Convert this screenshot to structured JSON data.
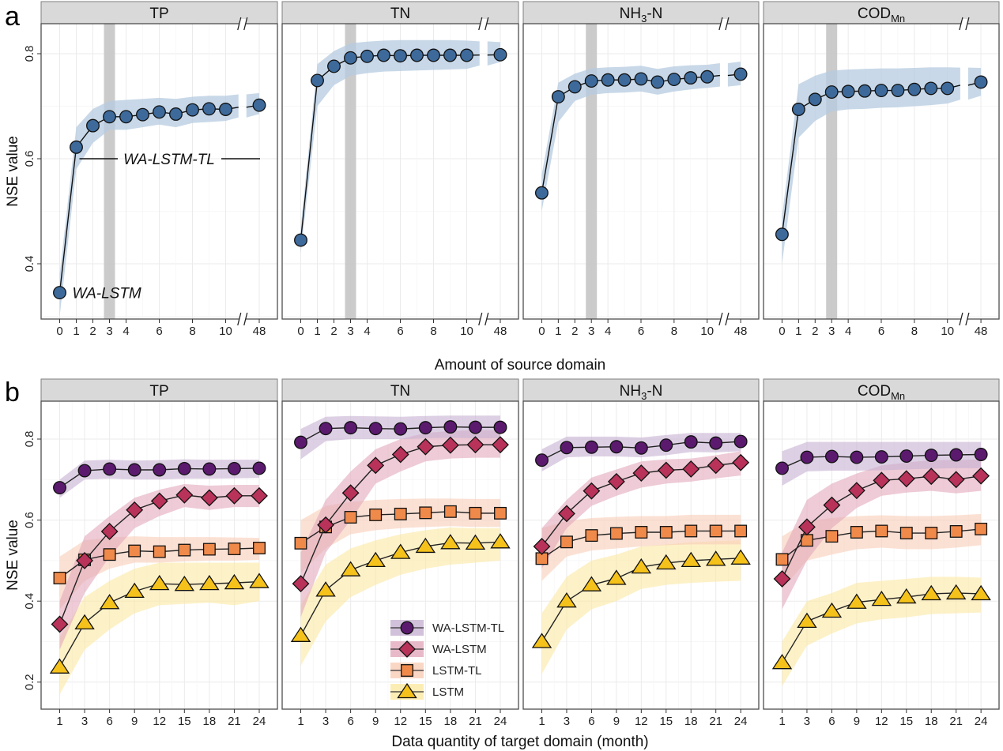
{
  "figure": {
    "panel_letters": [
      "a",
      "b"
    ]
  },
  "chart_data": [
    {
      "id": "a",
      "type": "line",
      "title": "",
      "xlabel": "Amount of source domain",
      "ylabel": "NSE value",
      "ylim": [
        0.3,
        0.86
      ],
      "y_ticks": [
        0.4,
        0.6,
        0.8
      ],
      "y_tick_labels": [
        "0.4",
        "0.6",
        "0.8"
      ],
      "x": [
        0,
        1,
        2,
        3,
        4,
        5,
        6,
        7,
        8,
        9,
        10,
        48
      ],
      "x_tick_values": [
        0,
        1,
        2,
        3,
        4,
        6,
        8,
        10,
        48
      ],
      "x_tick_labels": [
        "0",
        "1",
        "2",
        "3",
        "4",
        "6",
        "8",
        "10",
        "48"
      ],
      "axis_break": "between 10 and 48",
      "highlight_x": 3,
      "grid": true,
      "band": "uncertainty range shaded around line",
      "colors": {
        "line": "#111111",
        "marker": "#3d6a9a",
        "band": "#b6cbe0",
        "highlight": "#c8c8c8",
        "strip": "#d9d9d9"
      },
      "annotations": [
        {
          "facet": "TP",
          "text": "WA-LSTM-TL",
          "near_x": 6,
          "y": 0.6,
          "style": "italic with line"
        },
        {
          "facet": "TP",
          "text": "WA-LSTM",
          "near_x": 0,
          "y": 0.345,
          "style": "italic"
        }
      ],
      "facets": [
        {
          "label": "TP",
          "label_main": "TP",
          "label_sub": "",
          "values": [
            0.345,
            0.622,
            0.663,
            0.68,
            0.68,
            0.684,
            0.689,
            0.685,
            0.693,
            0.695,
            0.694,
            0.702
          ],
          "lower": [
            0.3,
            0.58,
            0.63,
            0.655,
            0.655,
            0.66,
            0.665,
            0.66,
            0.668,
            0.67,
            0.672,
            0.685
          ],
          "upper": [
            0.38,
            0.66,
            0.695,
            0.71,
            0.712,
            0.714,
            0.716,
            0.714,
            0.718,
            0.72,
            0.72,
            0.725
          ]
        },
        {
          "label": "TN",
          "label_main": "TN",
          "label_sub": "",
          "values": [
            0.445,
            0.749,
            0.776,
            0.792,
            0.795,
            0.797,
            0.796,
            0.797,
            0.797,
            0.797,
            0.797,
            0.798
          ],
          "lower": [
            0.42,
            0.7,
            0.74,
            0.758,
            0.763,
            0.766,
            0.767,
            0.768,
            0.769,
            0.77,
            0.771,
            0.784
          ],
          "upper": [
            0.47,
            0.78,
            0.805,
            0.82,
            0.823,
            0.825,
            0.826,
            0.826,
            0.826,
            0.826,
            0.825,
            0.822
          ]
        },
        {
          "label": "NH3-N",
          "label_main": "NH",
          "label_sub": "3",
          "label_suffix": "-N",
          "values": [
            0.535,
            0.718,
            0.737,
            0.748,
            0.75,
            0.75,
            0.752,
            0.746,
            0.751,
            0.754,
            0.756,
            0.761
          ],
          "lower": [
            0.5,
            0.67,
            0.71,
            0.722,
            0.725,
            0.726,
            0.728,
            0.722,
            0.728,
            0.732,
            0.735,
            0.74
          ],
          "upper": [
            0.57,
            0.745,
            0.762,
            0.772,
            0.774,
            0.775,
            0.777,
            0.771,
            0.776,
            0.778,
            0.779,
            0.785
          ]
        },
        {
          "label": "CODMn",
          "label_main": "COD",
          "label_sub": "Mn",
          "label_suffix": "",
          "values": [
            0.456,
            0.694,
            0.713,
            0.727,
            0.728,
            0.729,
            0.73,
            0.73,
            0.732,
            0.734,
            0.734,
            0.746
          ],
          "lower": [
            0.4,
            0.64,
            0.672,
            0.69,
            0.694,
            0.695,
            0.697,
            0.698,
            0.7,
            0.702,
            0.705,
            0.72
          ],
          "upper": [
            0.49,
            0.742,
            0.758,
            0.768,
            0.77,
            0.771,
            0.772,
            0.772,
            0.773,
            0.774,
            0.774,
            0.773
          ]
        }
      ]
    },
    {
      "id": "b",
      "type": "line",
      "title": "",
      "xlabel": "Data quantity of target domain (month)",
      "ylabel": "NSE value",
      "ylim": [
        0.14,
        0.9
      ],
      "y_ticks": [
        0.2,
        0.4,
        0.6,
        0.8
      ],
      "y_tick_labels": [
        "0.2",
        "0.4",
        "0.6",
        "0.8"
      ],
      "x": [
        1,
        3,
        6,
        9,
        12,
        15,
        18,
        21,
        24
      ],
      "x_tick_labels": [
        "1",
        "3",
        "6",
        "9",
        "12",
        "15",
        "18",
        "21",
        "24"
      ],
      "grid": true,
      "legend": {
        "placement": "bottom-right of TP panel (inside TN panel area)",
        "entries": [
          "WA-LSTM-TL",
          "WA-LSTM",
          "LSTM-TL",
          "LSTM"
        ]
      },
      "series_styles": [
        {
          "name": "WA-LSTM-TL",
          "marker": "circle",
          "color": "#5b1a6e",
          "band": "#c7b1d2"
        },
        {
          "name": "WA-LSTM",
          "marker": "diamond",
          "color": "#b8325a",
          "band": "#e2a9bb"
        },
        {
          "name": "LSTM-TL",
          "marker": "square",
          "color": "#f08a4b",
          "band": "#f9cdb7"
        },
        {
          "name": "LSTM",
          "marker": "triangle",
          "color": "#f5c21b",
          "band": "#fbe8a3"
        }
      ],
      "facets": [
        {
          "label": "TP",
          "label_main": "TP",
          "label_sub": "",
          "series": [
            {
              "name": "WA-LSTM-TL",
              "values": [
                0.68,
                0.722,
                0.726,
                0.724,
                0.724,
                0.727,
                0.726,
                0.727,
                0.728
              ],
              "lower": [
                0.655,
                0.7,
                0.702,
                0.7,
                0.7,
                0.702,
                0.702,
                0.703,
                0.704
              ],
              "upper": [
                0.7,
                0.747,
                0.749,
                0.747,
                0.748,
                0.75,
                0.749,
                0.749,
                0.749
              ]
            },
            {
              "name": "WA-LSTM",
              "values": [
                0.343,
                0.5,
                0.572,
                0.625,
                0.647,
                0.662,
                0.655,
                0.66,
                0.66
              ],
              "lower": [
                0.28,
                0.42,
                0.51,
                0.58,
                0.61,
                0.632,
                0.625,
                0.632,
                0.632
              ],
              "upper": [
                0.4,
                0.56,
                0.61,
                0.655,
                0.675,
                0.689,
                0.685,
                0.687,
                0.687
              ]
            },
            {
              "name": "LSTM-TL",
              "values": [
                0.457,
                0.502,
                0.515,
                0.524,
                0.522,
                0.526,
                0.528,
                0.529,
                0.531
              ],
              "lower": [
                0.38,
                0.45,
                0.48,
                0.495,
                0.495,
                0.498,
                0.5,
                0.5,
                0.502
              ],
              "upper": [
                0.51,
                0.55,
                0.557,
                0.56,
                0.558,
                0.558,
                0.558,
                0.557,
                0.556
              ]
            },
            {
              "name": "LSTM",
              "values": [
                0.237,
                0.346,
                0.396,
                0.424,
                0.443,
                0.441,
                0.443,
                0.445,
                0.448
              ],
              "lower": [
                0.17,
                0.28,
                0.33,
                0.37,
                0.39,
                0.393,
                0.396,
                0.39,
                0.4
              ],
              "upper": [
                0.31,
                0.41,
                0.45,
                0.48,
                0.495,
                0.495,
                0.495,
                0.495,
                0.495
              ]
            }
          ]
        },
        {
          "label": "TN",
          "label_main": "TN",
          "label_sub": "",
          "series": [
            {
              "name": "WA-LSTM-TL",
              "values": [
                0.792,
                0.826,
                0.828,
                0.826,
                0.825,
                0.828,
                0.83,
                0.829,
                0.829
              ],
              "lower": [
                0.75,
                0.795,
                0.8,
                0.8,
                0.8,
                0.802,
                0.803,
                0.802,
                0.802
              ],
              "upper": [
                0.825,
                0.855,
                0.857,
                0.856,
                0.855,
                0.857,
                0.858,
                0.858,
                0.858
              ]
            },
            {
              "name": "WA-LSTM",
              "values": [
                0.443,
                0.588,
                0.667,
                0.735,
                0.762,
                0.781,
                0.785,
                0.786,
                0.786
              ],
              "lower": [
                0.36,
                0.52,
                0.6,
                0.69,
                0.72,
                0.745,
                0.752,
                0.754,
                0.754
              ],
              "upper": [
                0.52,
                0.65,
                0.72,
                0.775,
                0.8,
                0.815,
                0.82,
                0.822,
                0.822
              ]
            },
            {
              "name": "LSTM-TL",
              "values": [
                0.543,
                0.583,
                0.607,
                0.613,
                0.615,
                0.618,
                0.621,
                0.617,
                0.617
              ],
              "lower": [
                0.47,
                0.53,
                0.565,
                0.575,
                0.58,
                0.583,
                0.585,
                0.583,
                0.583
              ],
              "upper": [
                0.6,
                0.635,
                0.645,
                0.65,
                0.652,
                0.653,
                0.653,
                0.652,
                0.652
              ]
            },
            {
              "name": "LSTM",
              "values": [
                0.315,
                0.427,
                0.477,
                0.5,
                0.52,
                0.535,
                0.544,
                0.543,
                0.546
              ],
              "lower": [
                0.24,
                0.35,
                0.41,
                0.44,
                0.465,
                0.48,
                0.49,
                0.495,
                0.5
              ],
              "upper": [
                0.39,
                0.49,
                0.53,
                0.55,
                0.565,
                0.575,
                0.582,
                0.58,
                0.58
              ]
            }
          ]
        },
        {
          "label": "NH3-N",
          "label_main": "NH",
          "label_sub": "3",
          "label_suffix": "-N",
          "series": [
            {
              "name": "WA-LSTM-TL",
              "values": [
                0.748,
                0.779,
                0.78,
                0.781,
                0.778,
                0.785,
                0.793,
                0.79,
                0.794
              ],
              "lower": [
                0.72,
                0.755,
                0.757,
                0.757,
                0.755,
                0.76,
                0.768,
                0.767,
                0.77
              ],
              "upper": [
                0.775,
                0.806,
                0.806,
                0.806,
                0.804,
                0.81,
                0.815,
                0.815,
                0.815
              ]
            },
            {
              "name": "WA-LSTM",
              "values": [
                0.535,
                0.616,
                0.672,
                0.695,
                0.716,
                0.723,
                0.726,
                0.735,
                0.742
              ],
              "lower": [
                0.48,
                0.58,
                0.635,
                0.66,
                0.68,
                0.69,
                0.695,
                0.703,
                0.71
              ],
              "upper": [
                0.58,
                0.65,
                0.705,
                0.725,
                0.745,
                0.75,
                0.752,
                0.76,
                0.77
              ]
            },
            {
              "name": "LSTM-TL",
              "values": [
                0.505,
                0.546,
                0.562,
                0.567,
                0.57,
                0.57,
                0.573,
                0.573,
                0.573
              ],
              "lower": [
                0.45,
                0.51,
                0.525,
                0.53,
                0.535,
                0.538,
                0.54,
                0.54,
                0.54
              ],
              "upper": [
                0.58,
                0.598,
                0.605,
                0.608,
                0.61,
                0.61,
                0.613,
                0.613,
                0.613
              ]
            },
            {
              "name": "LSTM",
              "values": [
                0.3,
                0.4,
                0.44,
                0.456,
                0.484,
                0.494,
                0.5,
                0.503,
                0.506
              ],
              "lower": [
                0.22,
                0.33,
                0.38,
                0.4,
                0.43,
                0.44,
                0.445,
                0.448,
                0.45
              ],
              "upper": [
                0.37,
                0.46,
                0.5,
                0.515,
                0.535,
                0.54,
                0.545,
                0.548,
                0.55
              ]
            }
          ]
        },
        {
          "label": "CODMn",
          "label_main": "COD",
          "label_sub": "Mn",
          "label_suffix": "",
          "series": [
            {
              "name": "WA-LSTM-TL",
              "values": [
                0.728,
                0.755,
                0.757,
                0.755,
                0.756,
                0.758,
                0.76,
                0.761,
                0.762
              ],
              "lower": [
                0.685,
                0.72,
                0.722,
                0.722,
                0.723,
                0.725,
                0.727,
                0.728,
                0.728
              ],
              "upper": [
                0.77,
                0.793,
                0.793,
                0.793,
                0.793,
                0.793,
                0.793,
                0.793,
                0.793
              ]
            },
            {
              "name": "WA-LSTM",
              "values": [
                0.455,
                0.583,
                0.637,
                0.673,
                0.698,
                0.702,
                0.708,
                0.7,
                0.709
              ],
              "lower": [
                0.38,
                0.5,
                0.58,
                0.63,
                0.66,
                0.668,
                0.672,
                0.666,
                0.672
              ],
              "upper": [
                0.52,
                0.65,
                0.69,
                0.715,
                0.735,
                0.742,
                0.748,
                0.748,
                0.75
              ]
            },
            {
              "name": "LSTM-TL",
              "values": [
                0.503,
                0.55,
                0.56,
                0.57,
                0.573,
                0.568,
                0.568,
                0.572,
                0.578
              ],
              "lower": [
                0.43,
                0.5,
                0.515,
                0.528,
                0.532,
                0.528,
                0.528,
                0.532,
                0.538
              ],
              "upper": [
                0.56,
                0.597,
                0.605,
                0.61,
                0.612,
                0.61,
                0.61,
                0.612,
                0.615
              ]
            },
            {
              "name": "LSTM",
              "values": [
                0.248,
                0.35,
                0.375,
                0.397,
                0.404,
                0.41,
                0.418,
                0.42,
                0.418
              ],
              "lower": [
                0.19,
                0.29,
                0.32,
                0.345,
                0.355,
                0.36,
                0.368,
                0.37,
                0.372
              ],
              "upper": [
                0.3,
                0.4,
                0.42,
                0.445,
                0.45,
                0.455,
                0.46,
                0.46,
                0.458
              ]
            }
          ]
        }
      ]
    }
  ]
}
